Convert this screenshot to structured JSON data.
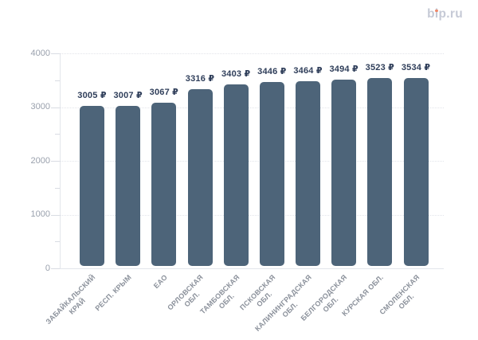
{
  "logo": {
    "text": "bip.ru"
  },
  "chart_data": {
    "type": "bar",
    "title": "",
    "categories": [
      "ЗАБАЙКАЛЬСКИЙ\nКРАЙ",
      "РЕСП. КРЫМ",
      "ЕАО",
      "ОРЛОВСКАЯ\nОБЛ.",
      "ТАМБОВСКАЯ\nОБЛ.",
      "ПСКОВСКАЯ\nОБЛ.",
      "КАЛИНИНГРАДСКАЯ\nОБЛ.",
      "БЕЛГОРОДСКАЯ\nОБЛ.",
      "КУРСКАЯ ОБЛ.",
      "СМОЛЕНСКАЯ\nОБЛ."
    ],
    "values": [
      3005,
      3007,
      3067,
      3316,
      3403,
      3446,
      3464,
      3494,
      3523,
      3534
    ],
    "value_labels": [
      "3005 ₽",
      "3007 ₽",
      "3067 ₽",
      "3316 ₽",
      "3403 ₽",
      "3446 ₽",
      "3464 ₽",
      "3494 ₽",
      "3523 ₽",
      "3534 ₽"
    ],
    "value_suffix": " ₽",
    "xlabel": "",
    "ylabel": "",
    "ylim": [
      0,
      4000
    ],
    "yticks": [
      0,
      1000,
      2000,
      3000,
      4000
    ],
    "ytick_labels": [
      "0",
      "1000",
      "2000",
      "3000",
      "4000"
    ],
    "minor_yticks": [
      500,
      1500,
      2500,
      3500
    ],
    "grid": "horizontal-dotted",
    "legend": "none",
    "colors": {
      "bar": "#4d6479",
      "value_label": "#2f3e5a",
      "axis_line": "#e3e5eb",
      "grid_line": "#e2e4ea",
      "tick_mark": "#d9dce3",
      "y_tick_label": "#9aa1ad",
      "x_tick_label": "#8b919b",
      "logo_text": "#c6cad6",
      "logo_dot": "#ed8768",
      "background": "#ffffff"
    }
  }
}
